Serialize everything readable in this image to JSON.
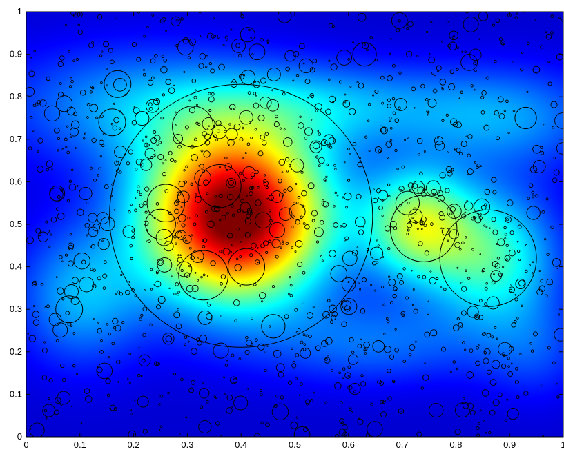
{
  "chart_data": {
    "type": "heatmap",
    "title": "",
    "xlabel": "",
    "ylabel": "",
    "xlim": [
      0,
      1
    ],
    "ylim": [
      0,
      1
    ],
    "grid": false,
    "colormap": "jet",
    "x_ticks": [
      "0",
      "0.1",
      "0.2",
      "0.3",
      "0.4",
      "0.5",
      "0.6",
      "0.7",
      "0.8",
      "0.9",
      "1"
    ],
    "y_ticks": [
      "0",
      "0.1",
      "0.2",
      "0.3",
      "0.4",
      "0.5",
      "0.6",
      "0.7",
      "0.8",
      "0.9",
      "1"
    ],
    "density_peaks": [
      {
        "x": 0.39,
        "y": 0.52,
        "weight": 1.0
      },
      {
        "x": 0.73,
        "y": 0.5,
        "weight": 0.45
      },
      {
        "x": 0.86,
        "y": 0.42,
        "weight": 0.35
      },
      {
        "x": 0.1,
        "y": 0.35,
        "weight": 0.25
      }
    ],
    "overlay": {
      "type": "scatter",
      "marker": "circle",
      "marker_color": "#000000",
      "large_circles": [
        {
          "x": 0.4,
          "y": 0.52,
          "r": 0.245
        },
        {
          "x": 0.74,
          "y": 0.49,
          "r": 0.062
        },
        {
          "x": 0.86,
          "y": 0.42,
          "r": 0.09
        },
        {
          "x": 0.33,
          "y": 0.38,
          "r": 0.046
        },
        {
          "x": 0.41,
          "y": 0.4,
          "r": 0.034
        },
        {
          "x": 0.36,
          "y": 0.59,
          "r": 0.04
        },
        {
          "x": 0.31,
          "y": 0.73,
          "r": 0.038
        },
        {
          "x": 0.17,
          "y": 0.83,
          "r": 0.025
        },
        {
          "x": 0.93,
          "y": 0.75,
          "r": 0.02
        },
        {
          "x": 0.63,
          "y": 0.9,
          "r": 0.022
        },
        {
          "x": 0.08,
          "y": 0.3,
          "r": 0.025
        },
        {
          "x": 0.26,
          "y": 0.55,
          "r": 0.035
        },
        {
          "x": 0.25,
          "y": 0.5,
          "r": 0.028
        },
        {
          "x": 0.46,
          "y": 0.26,
          "r": 0.022
        },
        {
          "x": 0.16,
          "y": 0.74,
          "r": 0.025
        },
        {
          "x": 0.71,
          "y": 0.55,
          "r": 0.022
        }
      ],
      "small_circle_count": 1400
    }
  }
}
